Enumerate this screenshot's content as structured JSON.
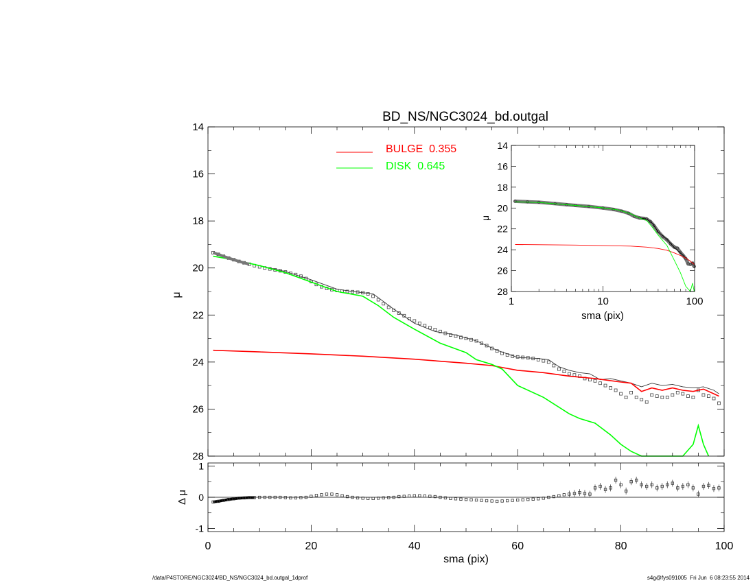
{
  "chart_data": [
    {
      "id": "main",
      "type": "line",
      "title": "BD_NS/NGC3024_bd.outgal",
      "xlabel": "",
      "ylabel": "μ",
      "xlim": [
        0,
        100
      ],
      "ylim": [
        28,
        14
      ],
      "yticks": [
        14,
        16,
        18,
        20,
        22,
        24,
        26,
        28
      ],
      "legend": [
        {
          "label": "BULGE  0.355",
          "color": "#ff0000"
        },
        {
          "label": "DISK  0.645",
          "color": "#00ff00"
        }
      ],
      "series": [
        {
          "role": "observed",
          "style": "squares",
          "color": "#444444",
          "x": [
            1,
            2,
            3,
            4,
            5,
            6,
            7,
            8,
            9,
            10,
            11,
            12,
            13,
            14,
            15,
            16,
            17,
            18,
            19,
            20,
            21,
            22,
            23,
            24,
            25,
            26,
            27,
            28,
            29,
            30,
            31,
            32,
            33,
            34,
            35,
            36,
            37,
            38,
            39,
            40,
            41,
            42,
            43,
            44,
            45,
            46,
            47,
            48,
            49,
            50,
            51,
            52,
            53,
            54,
            55,
            56,
            57,
            58,
            59,
            60,
            61,
            62,
            63,
            64,
            65,
            66,
            67,
            68,
            69,
            70,
            71,
            72,
            73,
            74,
            75,
            76,
            77,
            78,
            79,
            80,
            81,
            82,
            83,
            84,
            85,
            86,
            87,
            88,
            89,
            90,
            91,
            92,
            93,
            94,
            95,
            96,
            97,
            98,
            99
          ],
          "y": [
            19.35,
            19.42,
            19.5,
            19.58,
            19.65,
            19.72,
            19.78,
            19.84,
            19.9,
            19.95,
            20.0,
            20.04,
            20.08,
            20.12,
            20.17,
            20.22,
            20.28,
            20.35,
            20.45,
            20.58,
            20.7,
            20.8,
            20.87,
            20.92,
            20.96,
            20.99,
            21.0,
            21.01,
            21.03,
            21.05,
            21.1,
            21.2,
            21.35,
            21.52,
            21.67,
            21.8,
            21.92,
            22.03,
            22.15,
            22.25,
            22.35,
            22.45,
            22.54,
            22.62,
            22.7,
            22.78,
            22.85,
            22.9,
            22.95,
            23.0,
            23.05,
            23.1,
            23.2,
            23.3,
            23.42,
            23.53,
            23.63,
            23.7,
            23.75,
            23.78,
            23.8,
            23.82,
            23.85,
            23.9,
            23.95,
            24.0,
            24.15,
            24.3,
            24.4,
            24.5,
            24.55,
            24.6,
            24.7,
            24.75,
            24.8,
            24.9,
            25.0,
            25.1,
            25.2,
            25.35,
            25.5,
            25.3,
            25.5,
            25.6,
            25.7,
            25.4,
            25.45,
            25.5,
            25.5,
            25.4,
            25.3,
            25.35,
            25.45,
            25.5,
            25.2,
            25.4,
            25.45,
            25.55,
            25.75
          ]
        },
        {
          "role": "model-total",
          "style": "line",
          "color": "#333333",
          "x": [
            1,
            5,
            10,
            15,
            20,
            25,
            28,
            32,
            36,
            40,
            44,
            48,
            52,
            56,
            60,
            64,
            66,
            68,
            70,
            72,
            74,
            76,
            78,
            80,
            82,
            84,
            86,
            88,
            90,
            92,
            94,
            96,
            98,
            99
          ],
          "y": [
            19.5,
            19.65,
            19.9,
            20.15,
            20.5,
            20.9,
            21.0,
            21.1,
            21.75,
            22.35,
            22.7,
            22.85,
            23.1,
            23.5,
            23.8,
            23.85,
            23.9,
            24.2,
            24.35,
            24.45,
            24.5,
            24.75,
            24.7,
            24.8,
            24.9,
            25.05,
            24.9,
            25.0,
            24.95,
            25.05,
            25.1,
            25.05,
            25.2,
            25.35
          ]
        },
        {
          "role": "bulge",
          "style": "line",
          "color": "#ff0000",
          "x": [
            1,
            10,
            20,
            30,
            40,
            50,
            55,
            60,
            65,
            70,
            75,
            80,
            82,
            84,
            86,
            88,
            90,
            92,
            94,
            96,
            98,
            99
          ],
          "y": [
            23.5,
            23.57,
            23.65,
            23.75,
            23.88,
            24.05,
            24.15,
            24.35,
            24.45,
            24.6,
            24.7,
            24.85,
            24.9,
            25.25,
            25.1,
            25.2,
            25.1,
            25.2,
            25.25,
            25.15,
            25.35,
            25.45
          ]
        },
        {
          "role": "disk",
          "style": "line",
          "color": "#00ff00",
          "x": [
            1,
            5,
            10,
            15,
            20,
            25,
            30,
            33,
            36,
            40,
            45,
            50,
            52,
            55,
            57,
            60,
            65,
            70,
            72,
            75,
            78,
            80,
            82,
            84,
            86,
            88,
            90,
            92,
            94,
            95,
            96,
            97
          ],
          "y": [
            19.5,
            19.65,
            19.9,
            20.2,
            20.6,
            21.0,
            21.2,
            21.6,
            22.1,
            22.6,
            23.2,
            23.6,
            23.9,
            24.1,
            24.3,
            25.0,
            25.5,
            26.2,
            26.4,
            26.6,
            27.1,
            27.5,
            27.8,
            28.1,
            28.0,
            28.1,
            28.0,
            28.3,
            27.5,
            26.7,
            27.5,
            28.2
          ]
        }
      ]
    },
    {
      "id": "inset",
      "type": "line",
      "xscale": "log",
      "xlabel": "sma (pix)",
      "ylabel": "μ",
      "xlim": [
        1,
        100
      ],
      "ylim": [
        28,
        14
      ],
      "xticks": [
        1,
        10,
        100
      ],
      "yticks": [
        14,
        16,
        18,
        20,
        22,
        24,
        26,
        28
      ],
      "series": [
        {
          "role": "observed",
          "style": "dots",
          "color": "#555555",
          "x": [
            1.1,
            1.5,
            2,
            3,
            4,
            5,
            7,
            10,
            13,
            16,
            19,
            22,
            25,
            28,
            30,
            33,
            36,
            40,
            45,
            50,
            55,
            60,
            65,
            70,
            75,
            80,
            85,
            90,
            95,
            99
          ],
          "y": [
            19.35,
            19.4,
            19.45,
            19.58,
            19.68,
            19.75,
            19.85,
            20.0,
            20.13,
            20.3,
            20.5,
            20.8,
            20.95,
            21.0,
            21.05,
            21.3,
            21.7,
            22.25,
            22.75,
            23.05,
            23.45,
            23.75,
            23.85,
            24.25,
            24.55,
            24.85,
            25.35,
            25.4,
            25.3,
            25.6
          ]
        },
        {
          "role": "model-total",
          "style": "line",
          "color": "#000000",
          "x": [
            1.1,
            2,
            5,
            10,
            15,
            20,
            25,
            30,
            35,
            40,
            50,
            60,
            70,
            80,
            90,
            99
          ],
          "y": [
            19.4,
            19.47,
            19.75,
            19.98,
            20.2,
            20.55,
            20.95,
            21.05,
            21.5,
            22.3,
            23.0,
            23.8,
            24.3,
            24.8,
            25.1,
            25.4
          ]
        },
        {
          "role": "bulge",
          "style": "line",
          "color": "#ff0000",
          "x": [
            1.1,
            5,
            10,
            20,
            30,
            40,
            50,
            60,
            70,
            80,
            90,
            99
          ],
          "y": [
            23.5,
            23.55,
            23.6,
            23.65,
            23.75,
            23.88,
            24.05,
            24.3,
            24.55,
            24.8,
            25.1,
            25.4
          ]
        },
        {
          "role": "disk",
          "style": "line",
          "color": "#00ff00",
          "x": [
            1.1,
            2,
            5,
            10,
            15,
            20,
            25,
            30,
            35,
            40,
            50,
            60,
            70,
            80,
            90,
            95,
            99
          ],
          "y": [
            19.4,
            19.47,
            19.75,
            19.98,
            20.2,
            20.55,
            20.95,
            21.2,
            21.9,
            22.6,
            23.6,
            25.0,
            26.2,
            27.5,
            28.0,
            27.2,
            28.0
          ]
        }
      ]
    },
    {
      "id": "residual",
      "type": "scatter",
      "xlabel": "sma (pix)",
      "ylabel": "Δ μ",
      "xlim": [
        0,
        100
      ],
      "ylim": [
        -1.1,
        1.1
      ],
      "xticks": [
        0,
        20,
        40,
        60,
        80,
        100
      ],
      "yticks": [
        -1,
        0,
        1
      ],
      "series": [
        {
          "role": "residual",
          "color": "#333333",
          "x": [
            1,
            2,
            3,
            4,
            5,
            6,
            7,
            8,
            9,
            10,
            11,
            12,
            13,
            14,
            15,
            16,
            17,
            18,
            19,
            20,
            21,
            22,
            23,
            24,
            25,
            26,
            27,
            28,
            29,
            30,
            31,
            32,
            33,
            34,
            35,
            36,
            37,
            38,
            39,
            40,
            41,
            42,
            43,
            44,
            45,
            46,
            47,
            48,
            49,
            50,
            51,
            52,
            53,
            54,
            55,
            56,
            57,
            58,
            59,
            60,
            61,
            62,
            63,
            64,
            65,
            66,
            67,
            68,
            69,
            70,
            71,
            72,
            73,
            74,
            75,
            76,
            77,
            78,
            79,
            80,
            81,
            82,
            83,
            84,
            85,
            86,
            87,
            88,
            89,
            90,
            91,
            92,
            93,
            94,
            95,
            96,
            97,
            98,
            99
          ],
          "y": [
            -0.15,
            -0.13,
            -0.1,
            -0.07,
            -0.05,
            -0.03,
            -0.02,
            -0.01,
            -0.01,
            0.0,
            0.0,
            0.0,
            0.0,
            0.0,
            -0.01,
            -0.02,
            -0.02,
            -0.01,
            0.0,
            0.03,
            0.06,
            0.08,
            0.1,
            0.1,
            0.08,
            0.05,
            0.02,
            0.0,
            -0.02,
            -0.03,
            -0.04,
            -0.04,
            -0.03,
            -0.02,
            -0.01,
            0.0,
            0.02,
            0.03,
            0.04,
            0.05,
            0.05,
            0.04,
            0.03,
            0.02,
            0.0,
            -0.02,
            -0.04,
            -0.05,
            -0.06,
            -0.07,
            -0.08,
            -0.09,
            -0.1,
            -0.11,
            -0.12,
            -0.13,
            -0.12,
            -0.11,
            -0.1,
            -0.09,
            -0.08,
            -0.07,
            -0.06,
            -0.05,
            -0.03,
            0.0,
            0.02,
            0.05,
            0.08,
            0.1,
            0.12,
            0.15,
            0.12,
            0.1,
            0.3,
            0.35,
            0.25,
            0.3,
            0.55,
            0.4,
            0.2,
            0.5,
            0.55,
            0.4,
            0.35,
            0.4,
            0.3,
            0.35,
            0.4,
            0.45,
            0.3,
            0.35,
            0.4,
            0.3,
            0.1,
            0.35,
            0.38,
            0.28,
            0.3
          ]
        }
      ]
    }
  ],
  "footer": {
    "left": "/data/P4STORE/NGC3024/BD_NS/NGC3024_bd.outgal_1dprof",
    "right": "s4g@fys091005  Fri Jun  6 08:23:55 2014"
  }
}
